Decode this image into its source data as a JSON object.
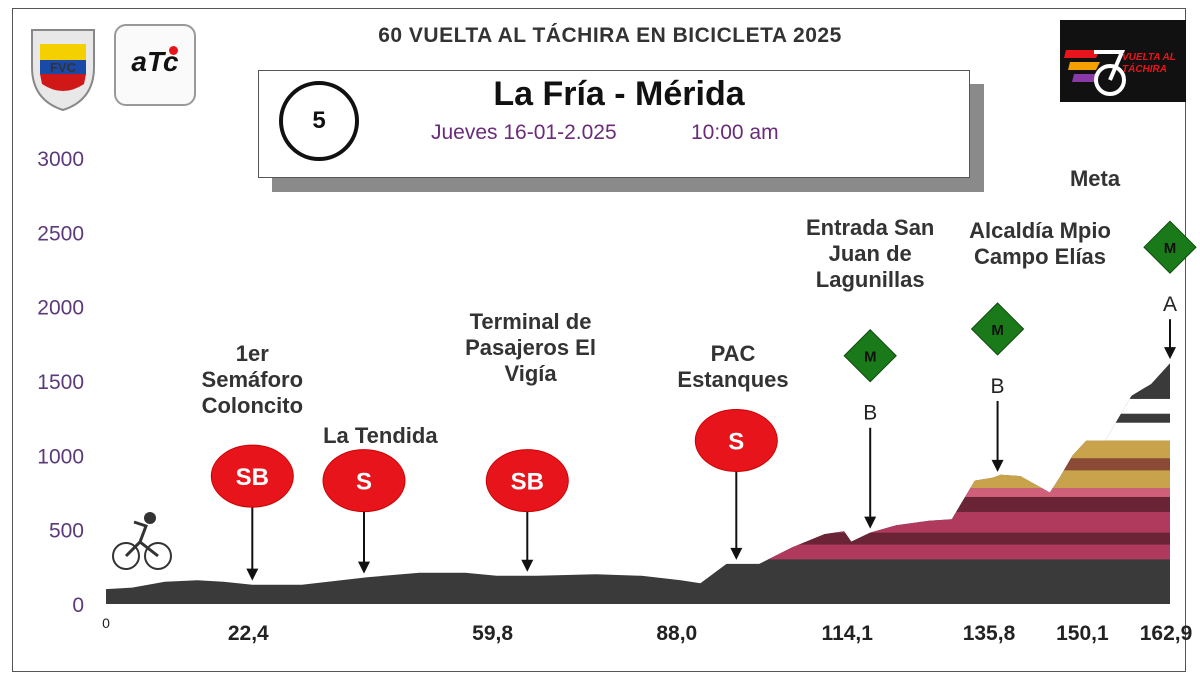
{
  "title": "60 VUELTA AL TÁCHIRA EN BICICLETA 2025",
  "stage": {
    "number": "5",
    "route": "La Fría - Mérida",
    "date": "Jueves 16-01-2.025",
    "time": "10:00 am"
  },
  "logos": {
    "fvc": "FVC",
    "atc": "aTc",
    "vuelta": "VUELTA AL TÁCHIRA"
  },
  "colors": {
    "terrain": "#3a3a3a",
    "band_pink": "#b03a5e",
    "band_maroon": "#6b2436",
    "band_tan": "#c9a24c",
    "band_white": "#ffffff",
    "marker_red": "#e8141b",
    "marker_green": "#1a7a1a",
    "axis_text": "#5a3a7a"
  },
  "chart_data": {
    "type": "area",
    "ylim": [
      0,
      3000
    ],
    "y_ticks": [
      0,
      500,
      1000,
      1500,
      2000,
      2500,
      3000
    ],
    "x_tick_labels": [
      "22,4",
      "59,8",
      "88,0",
      "114,1",
      "135,8",
      "150,1",
      "162,9"
    ],
    "x_tick_values": [
      22.4,
      59.8,
      88.0,
      114.1,
      135.8,
      150.1,
      162.9
    ],
    "x_start_label": "0",
    "xlim": [
      0,
      162.9
    ],
    "profile": [
      {
        "km": 0,
        "alt": 100
      },
      {
        "km": 4,
        "alt": 110
      },
      {
        "km": 9,
        "alt": 150
      },
      {
        "km": 14,
        "alt": 160
      },
      {
        "km": 18,
        "alt": 150
      },
      {
        "km": 22.4,
        "alt": 130
      },
      {
        "km": 30,
        "alt": 130
      },
      {
        "km": 40,
        "alt": 180
      },
      {
        "km": 48,
        "alt": 210
      },
      {
        "km": 55,
        "alt": 210
      },
      {
        "km": 59.8,
        "alt": 190
      },
      {
        "km": 66,
        "alt": 190
      },
      {
        "km": 75,
        "alt": 200
      },
      {
        "km": 82,
        "alt": 190
      },
      {
        "km": 88,
        "alt": 160
      },
      {
        "km": 91,
        "alt": 140
      },
      {
        "km": 95,
        "alt": 270
      },
      {
        "km": 100,
        "alt": 270
      },
      {
        "km": 105,
        "alt": 380
      },
      {
        "km": 110,
        "alt": 470
      },
      {
        "km": 113,
        "alt": 490
      },
      {
        "km": 114.1,
        "alt": 420
      },
      {
        "km": 117,
        "alt": 480
      },
      {
        "km": 121,
        "alt": 530
      },
      {
        "km": 126,
        "alt": 560
      },
      {
        "km": 129.5,
        "alt": 570
      },
      {
        "km": 133,
        "alt": 830
      },
      {
        "km": 135.8,
        "alt": 850
      },
      {
        "km": 137,
        "alt": 870
      },
      {
        "km": 140,
        "alt": 860
      },
      {
        "km": 144.5,
        "alt": 750
      },
      {
        "km": 146,
        "alt": 850
      },
      {
        "km": 148,
        "alt": 1000
      },
      {
        "km": 150.1,
        "alt": 1100
      },
      {
        "km": 153,
        "alt": 1100
      },
      {
        "km": 157,
        "alt": 1400
      },
      {
        "km": 160,
        "alt": 1480
      },
      {
        "km": 162.9,
        "alt": 1620
      }
    ],
    "bands": [
      {
        "from": 300,
        "to": 400,
        "color": "#b03a5e"
      },
      {
        "from": 400,
        "to": 480,
        "color": "#6b2436"
      },
      {
        "from": 480,
        "to": 620,
        "color": "#b03a5e"
      },
      {
        "from": 620,
        "to": 720,
        "color": "#6b2436"
      },
      {
        "from": 720,
        "to": 780,
        "color": "#d0607a"
      },
      {
        "from": 780,
        "to": 900,
        "color": "#c9a24c"
      },
      {
        "from": 900,
        "to": 980,
        "color": "#8a4a36"
      },
      {
        "from": 980,
        "to": 1100,
        "color": "#c9a24c"
      },
      {
        "from": 1100,
        "to": 1220,
        "color": "#ffffff"
      },
      {
        "from": 1220,
        "to": 1280,
        "color": "#3a3a3a"
      },
      {
        "from": 1280,
        "to": 1380,
        "color": "#ffffff"
      },
      {
        "from": 1380,
        "to": 1460,
        "color": "#3a3a3a"
      }
    ],
    "annotations": [
      {
        "label": "1er\nSemáforo\nColoncito",
        "km": 22.4,
        "marker": "SB",
        "marker_type": "sprint",
        "marker_y": 860,
        "label_y": 1700
      },
      {
        "label": "La Tendida",
        "km": 42,
        "point_km": 39.5,
        "marker": "S",
        "marker_type": "sprint",
        "marker_y": 830,
        "label_y": 1150
      },
      {
        "label": "Terminal de\nPasajeros El\nVigía",
        "km": 65,
        "point_km": 64.5,
        "marker": "SB",
        "marker_type": "sprint",
        "marker_y": 830,
        "label_y": 1920
      },
      {
        "label": "PAC\nEstanques",
        "km": 96,
        "point_km": 96.5,
        "marker": "S",
        "marker_type": "sprint",
        "marker_y": 1100,
        "label_y": 1700
      },
      {
        "label": "Entrada San\nJuan de\nLagunillas",
        "km": 117,
        "point_km": 117,
        "marker": "M",
        "marker_type": "mountain",
        "marker_y": 1670,
        "cat": "B",
        "label_y": 2550
      },
      {
        "label": "Alcaldía Mpio\nCampo Elías",
        "km": 143,
        "point_km": 136.5,
        "marker": "M",
        "marker_type": "mountain",
        "marker_y": 1850,
        "cat": "B",
        "label_y": 2530
      },
      {
        "label": "Meta",
        "km": 162.9,
        "point_km": 162.9,
        "marker": "M",
        "marker_type": "mountain",
        "marker_y": 2400,
        "cat": "A",
        "label_y": 2880
      }
    ]
  }
}
